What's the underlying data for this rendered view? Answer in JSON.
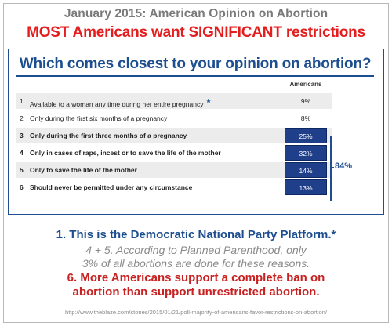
{
  "header": {
    "line1": "January 2015: American Opinion on Abortion",
    "line2": "MOST Americans want SIGNIFICANT restrictions"
  },
  "chart_data": {
    "type": "table",
    "title": "Which comes closest to your opinion on abortion?",
    "column_header": "Americans",
    "rows": [
      {
        "num": "1",
        "label": "Available to a woman any time during her entire pregnancy",
        "star": "*",
        "value": "9%",
        "shaded": true,
        "highlight": false
      },
      {
        "num": "2",
        "label": "Only during the first six months of a pregnancy",
        "star": "",
        "value": "8%",
        "shaded": false,
        "highlight": false
      },
      {
        "num": "3",
        "label": "Only during the first three months of a pregnancy",
        "star": "",
        "value": "25%",
        "shaded": true,
        "highlight": true
      },
      {
        "num": "4",
        "label": "Only in cases of rape, incest or to save the life of the mother",
        "star": "",
        "value": "32%",
        "shaded": false,
        "highlight": true
      },
      {
        "num": "5",
        "label": "Only to save the life of the mother",
        "star": "",
        "value": "14%",
        "shaded": true,
        "highlight": true
      },
      {
        "num": "6",
        "label": "Should never be permitted under any circumstance",
        "star": "",
        "value": "13%",
        "shaded": false,
        "highlight": true
      }
    ],
    "bracket_label": "84%"
  },
  "notes": {
    "line1": "1. This is the Democratic National Party Platform.*",
    "line2a": "4 + 5.  According to Planned Parenthood, only",
    "line2b": "3% of all abortions are done for these reasons.",
    "line3a": "6. More Americans support a complete ban on",
    "line3b": "abortion than support unrestricted abortion."
  },
  "source": "http://www.theblaze.com/stories/2015/01/21/poll-majority-of-americans-favor-restrictions-on-abortion/"
}
